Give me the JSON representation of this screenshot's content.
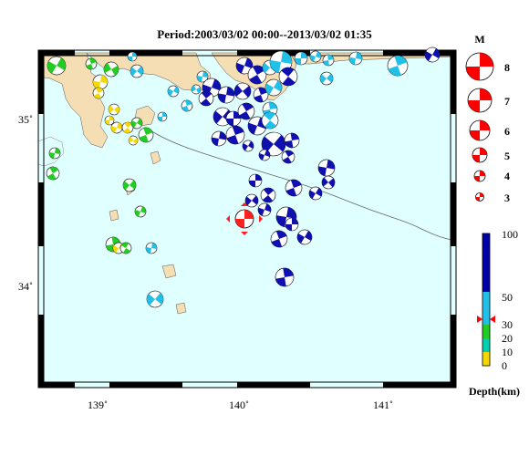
{
  "title": "Period:2003/03/02 00:00--2013/03/02 01:35",
  "map": {
    "lon_ticks": [
      "139˚",
      "140˚",
      "141˚"
    ],
    "lat_ticks": [
      "35˚",
      "34˚"
    ]
  },
  "magnitude_legend": {
    "title": "M",
    "levels": [
      "8",
      "7",
      "6",
      "5",
      "4",
      "3"
    ]
  },
  "depth_scale": {
    "title": "Depth(km)",
    "ticks": [
      "100",
      "50",
      "30",
      "20",
      "10",
      "0"
    ],
    "colors": {
      "0-10": "#f5d800",
      "10-20": "#22cc22",
      "20-30": "#22c0e8",
      "30-50": "#22c0e8",
      "50-100": "#1010b0"
    },
    "marked_depth": 35
  },
  "highlight_event": {
    "lon": 140.05,
    "lat": 34.42,
    "color": "#ff2020"
  },
  "colors": {
    "sea": "#e0ffff",
    "land": "#f5deb3",
    "frame": "#000000"
  }
}
